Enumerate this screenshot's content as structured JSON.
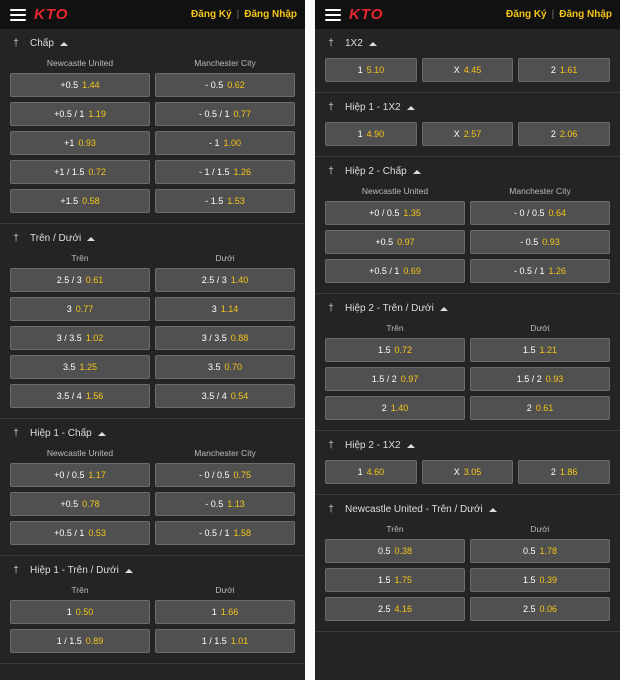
{
  "left": {
    "header": {
      "logo": "KTO",
      "register": "Đăng Ký",
      "login": "Đăng Nhập"
    },
    "sections": [
      {
        "title": "Chấp",
        "columns": [
          "Newcastle United",
          "Manchester City"
        ],
        "rows": [
          [
            {
              "label": "+0.5",
              "odd": "1.44"
            },
            {
              "label": "- 0.5",
              "odd": "0.62"
            }
          ],
          [
            {
              "label": "+0.5 / 1",
              "odd": "1.19"
            },
            {
              "label": "- 0.5 / 1",
              "odd": "0.77"
            }
          ],
          [
            {
              "label": "+1",
              "odd": "0.93"
            },
            {
              "label": "- 1",
              "odd": "1.00"
            }
          ],
          [
            {
              "label": "+1 / 1.5",
              "odd": "0.72"
            },
            {
              "label": "- 1 / 1.5",
              "odd": "1.26"
            }
          ],
          [
            {
              "label": "+1.5",
              "odd": "0.58"
            },
            {
              "label": "- 1.5",
              "odd": "1.53"
            }
          ]
        ]
      },
      {
        "title": "Trên / Dưới",
        "columns": [
          "Trên",
          "Dưới"
        ],
        "rows": [
          [
            {
              "label": "2.5 / 3",
              "odd": "0.61"
            },
            {
              "label": "2.5 / 3",
              "odd": "1.40"
            }
          ],
          [
            {
              "label": "3",
              "odd": "0.77"
            },
            {
              "label": "3",
              "odd": "1.14"
            }
          ],
          [
            {
              "label": "3 / 3.5",
              "odd": "1.02"
            },
            {
              "label": "3 / 3.5",
              "odd": "0.88"
            }
          ],
          [
            {
              "label": "3.5",
              "odd": "1.25"
            },
            {
              "label": "3.5",
              "odd": "0.70"
            }
          ],
          [
            {
              "label": "3.5 / 4",
              "odd": "1.56"
            },
            {
              "label": "3.5 / 4",
              "odd": "0.54"
            }
          ]
        ]
      },
      {
        "title": "Hiệp 1 - Chấp",
        "columns": [
          "Newcastle United",
          "Manchester City"
        ],
        "rows": [
          [
            {
              "label": "+0 / 0.5",
              "odd": "1.17"
            },
            {
              "label": "- 0 / 0.5",
              "odd": "0.75"
            }
          ],
          [
            {
              "label": "+0.5",
              "odd": "0.78"
            },
            {
              "label": "- 0.5",
              "odd": "1.13"
            }
          ],
          [
            {
              "label": "+0.5 / 1",
              "odd": "0.53"
            },
            {
              "label": "- 0.5 / 1",
              "odd": "1.58"
            }
          ]
        ]
      },
      {
        "title": "Hiệp 1 - Trên / Dưới",
        "columns": [
          "Trên",
          "Dưới"
        ],
        "rows": [
          [
            {
              "label": "1",
              "odd": "0.50"
            },
            {
              "label": "1",
              "odd": "1.66"
            }
          ],
          [
            {
              "label": "1 / 1.5",
              "odd": "0.89"
            },
            {
              "label": "1 / 1.5",
              "odd": "1.01"
            }
          ]
        ]
      }
    ]
  },
  "right": {
    "header": {
      "logo": "KTO",
      "register": "Đăng Ký",
      "login": "Đăng Nhập"
    },
    "sections": [
      {
        "title": "1X2",
        "columns": [],
        "rows": [
          [
            {
              "label": "1",
              "odd": "5.10"
            },
            {
              "label": "X",
              "odd": "4.45"
            },
            {
              "label": "2",
              "odd": "1.61"
            }
          ]
        ]
      },
      {
        "title": "Hiệp 1 - 1X2",
        "columns": [],
        "rows": [
          [
            {
              "label": "1",
              "odd": "4.90"
            },
            {
              "label": "X",
              "odd": "2.57"
            },
            {
              "label": "2",
              "odd": "2.06"
            }
          ]
        ]
      },
      {
        "title": "Hiệp 2 - Chấp",
        "columns": [
          "Newcastle United",
          "Manchester City"
        ],
        "rows": [
          [
            {
              "label": "+0 / 0.5",
              "odd": "1.35"
            },
            {
              "label": "- 0 / 0.5",
              "odd": "0.64"
            }
          ],
          [
            {
              "label": "+0.5",
              "odd": "0.97"
            },
            {
              "label": "- 0.5",
              "odd": "0.93"
            }
          ],
          [
            {
              "label": "+0.5 / 1",
              "odd": "0.69"
            },
            {
              "label": "- 0.5 / 1",
              "odd": "1.26"
            }
          ]
        ]
      },
      {
        "title": "Hiệp 2 - Trên / Dưới",
        "columns": [
          "Trên",
          "Dưới"
        ],
        "rows": [
          [
            {
              "label": "1.5",
              "odd": "0.72"
            },
            {
              "label": "1.5",
              "odd": "1.21"
            }
          ],
          [
            {
              "label": "1.5 / 2",
              "odd": "0.97"
            },
            {
              "label": "1.5 / 2",
              "odd": "0.93"
            }
          ],
          [
            {
              "label": "2",
              "odd": "1.40"
            },
            {
              "label": "2",
              "odd": "0.61"
            }
          ]
        ]
      },
      {
        "title": "Hiệp 2 - 1X2",
        "columns": [],
        "rows": [
          [
            {
              "label": "1",
              "odd": "4.60"
            },
            {
              "label": "X",
              "odd": "3.05"
            },
            {
              "label": "2",
              "odd": "1.86"
            }
          ]
        ]
      },
      {
        "title": "Newcastle United - Trên / Dưới",
        "columns": [
          "Trên",
          "Dưới"
        ],
        "rows": [
          [
            {
              "label": "0.5",
              "odd": "0.38"
            },
            {
              "label": "0.5",
              "odd": "1.78"
            }
          ],
          [
            {
              "label": "1.5",
              "odd": "1.75"
            },
            {
              "label": "1.5",
              "odd": "0.39"
            }
          ],
          [
            {
              "label": "2.5",
              "odd": "4.16"
            },
            {
              "label": "2.5",
              "odd": "0.06"
            }
          ]
        ]
      }
    ]
  },
  "colors": {
    "accent": "#f5c518",
    "logo": "#e8262f",
    "panel": "#242424",
    "button": "#505050"
  },
  "icons": {
    "menu": "hamburger-icon",
    "pin": "pin-icon",
    "collapse": "caret-up-icon"
  }
}
